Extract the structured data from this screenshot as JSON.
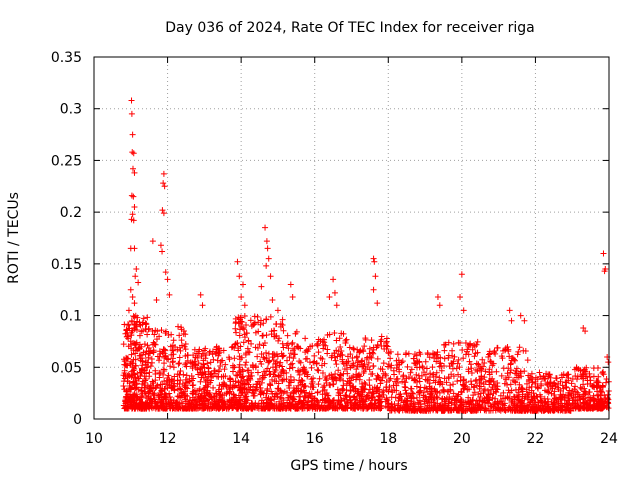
{
  "chart_data": {
    "type": "scatter",
    "title": "Day 036 of 2024, Rate Of TEC Index for receiver riga",
    "xlabel": "GPS time / hours",
    "ylabel": "ROTI / TECUs",
    "xlim": [
      10,
      24
    ],
    "ylim": [
      0,
      0.35
    ],
    "x_ticks": [
      10,
      12,
      14,
      16,
      18,
      20,
      22,
      24
    ],
    "x_tick_labels": [
      "10",
      "12",
      "14",
      "16",
      "18",
      "20",
      "22",
      "24"
    ],
    "y_ticks": [
      0,
      0.05,
      0.1,
      0.15,
      0.2,
      0.25,
      0.3,
      0.35
    ],
    "y_tick_labels": [
      "0",
      "0.05",
      "0.1",
      "0.15",
      "0.2",
      "0.25",
      "0.3",
      "0.35"
    ],
    "grid": true,
    "marker": "+",
    "color": "#ff0000",
    "series": [
      {
        "name": "ROTI",
        "points": [
          [
            11.02,
            0.308
          ],
          [
            11.03,
            0.295
          ],
          [
            11.05,
            0.275
          ],
          [
            11.04,
            0.258
          ],
          [
            11.08,
            0.257
          ],
          [
            11.06,
            0.242
          ],
          [
            11.1,
            0.238
          ],
          [
            11.03,
            0.216
          ],
          [
            11.07,
            0.215
          ],
          [
            11.1,
            0.205
          ],
          [
            11.05,
            0.198
          ],
          [
            11.02,
            0.193
          ],
          [
            11.08,
            0.192
          ],
          [
            11.0,
            0.165
          ],
          [
            11.1,
            0.165
          ],
          [
            11.15,
            0.145
          ],
          [
            11.12,
            0.138
          ],
          [
            11.2,
            0.132
          ],
          [
            11.0,
            0.125
          ],
          [
            11.05,
            0.118
          ],
          [
            11.1,
            0.112
          ],
          [
            10.95,
            0.105
          ],
          [
            11.18,
            0.098
          ],
          [
            11.6,
            0.172
          ],
          [
            11.82,
            0.168
          ],
          [
            11.85,
            0.162
          ],
          [
            11.9,
            0.237
          ],
          [
            11.88,
            0.228
          ],
          [
            11.92,
            0.225
          ],
          [
            11.86,
            0.202
          ],
          [
            11.9,
            0.199
          ],
          [
            11.95,
            0.142
          ],
          [
            12.0,
            0.135
          ],
          [
            12.05,
            0.12
          ],
          [
            11.7,
            0.115
          ],
          [
            12.9,
            0.12
          ],
          [
            12.95,
            0.11
          ],
          [
            13.9,
            0.152
          ],
          [
            13.95,
            0.138
          ],
          [
            14.05,
            0.13
          ],
          [
            14.0,
            0.118
          ],
          [
            14.1,
            0.11
          ],
          [
            14.65,
            0.185
          ],
          [
            14.7,
            0.172
          ],
          [
            14.72,
            0.165
          ],
          [
            14.75,
            0.155
          ],
          [
            14.68,
            0.148
          ],
          [
            14.8,
            0.138
          ],
          [
            14.55,
            0.128
          ],
          [
            14.85,
            0.115
          ],
          [
            15.0,
            0.105
          ],
          [
            15.35,
            0.13
          ],
          [
            15.4,
            0.118
          ],
          [
            16.4,
            0.118
          ],
          [
            16.5,
            0.135
          ],
          [
            16.55,
            0.122
          ],
          [
            16.6,
            0.11
          ],
          [
            17.6,
            0.155
          ],
          [
            17.62,
            0.152
          ],
          [
            17.65,
            0.138
          ],
          [
            17.6,
            0.125
          ],
          [
            17.7,
            0.112
          ],
          [
            19.35,
            0.118
          ],
          [
            19.4,
            0.11
          ],
          [
            19.95,
            0.118
          ],
          [
            20.0,
            0.14
          ],
          [
            20.05,
            0.105
          ],
          [
            21.3,
            0.105
          ],
          [
            21.35,
            0.095
          ],
          [
            21.6,
            0.1
          ],
          [
            21.7,
            0.095
          ],
          [
            23.3,
            0.088
          ],
          [
            23.35,
            0.085
          ],
          [
            23.85,
            0.16
          ],
          [
            23.88,
            0.143
          ],
          [
            23.9,
            0.145
          ],
          [
            23.95,
            0.06
          ],
          [
            23.98,
            0.055
          ]
        ],
        "generated_bands": [
          {
            "x_start": 10.8,
            "x_end": 11.5,
            "y_min": 0.01,
            "y_max": 0.1,
            "count": 320
          },
          {
            "x_start": 11.5,
            "x_end": 12.5,
            "y_min": 0.01,
            "y_max": 0.09,
            "count": 300
          },
          {
            "x_start": 12.5,
            "x_end": 13.8,
            "y_min": 0.01,
            "y_max": 0.07,
            "count": 360
          },
          {
            "x_start": 13.8,
            "x_end": 15.2,
            "y_min": 0.01,
            "y_max": 0.1,
            "count": 420
          },
          {
            "x_start": 15.2,
            "x_end": 16.8,
            "y_min": 0.01,
            "y_max": 0.085,
            "count": 380
          },
          {
            "x_start": 16.8,
            "x_end": 18.0,
            "y_min": 0.01,
            "y_max": 0.08,
            "count": 300
          },
          {
            "x_start": 18.0,
            "x_end": 19.5,
            "y_min": 0.008,
            "y_max": 0.065,
            "count": 330
          },
          {
            "x_start": 19.5,
            "x_end": 20.5,
            "y_min": 0.008,
            "y_max": 0.075,
            "count": 240
          },
          {
            "x_start": 20.5,
            "x_end": 21.8,
            "y_min": 0.008,
            "y_max": 0.07,
            "count": 280
          },
          {
            "x_start": 21.8,
            "x_end": 23.0,
            "y_min": 0.008,
            "y_max": 0.045,
            "count": 260
          },
          {
            "x_start": 23.0,
            "x_end": 24.0,
            "y_min": 0.01,
            "y_max": 0.05,
            "count": 240
          }
        ]
      }
    ]
  }
}
